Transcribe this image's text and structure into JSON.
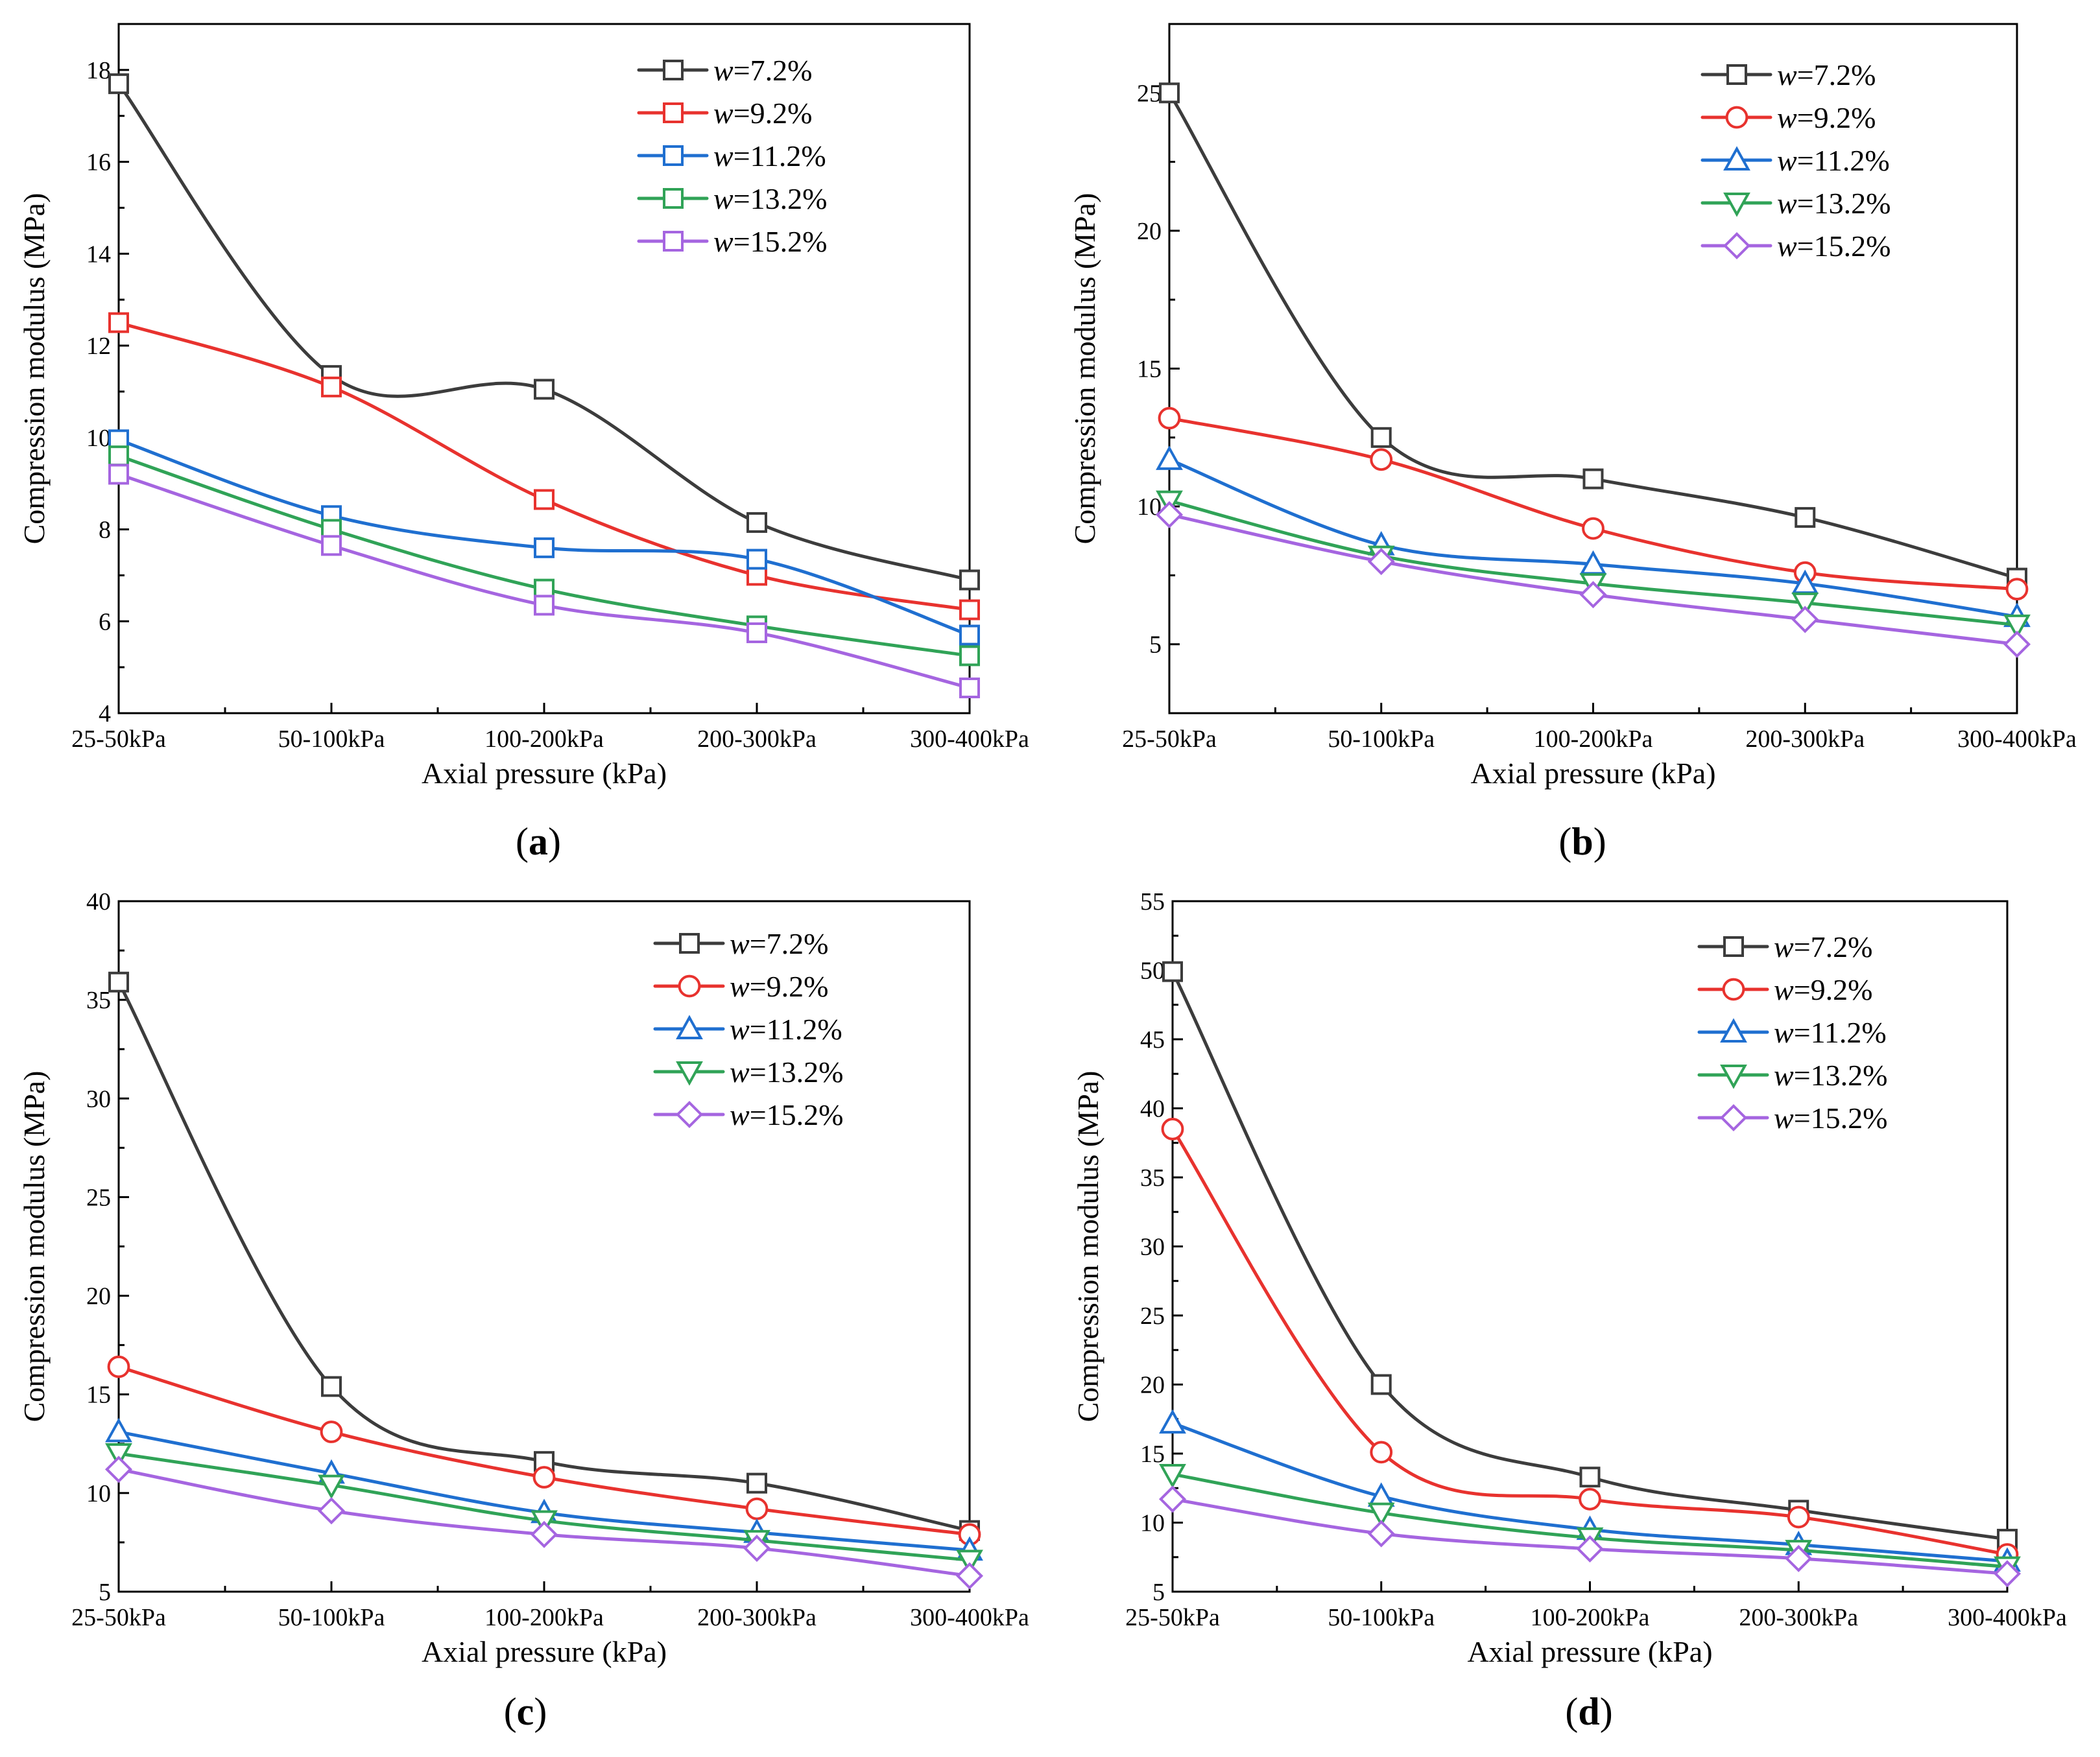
{
  "colors": {
    "w72": "#3c3c3c",
    "w92": "#e8322e",
    "w112": "#1f6fd0",
    "w132": "#30a357",
    "w152": "#a565e0"
  },
  "chart_data": [
    {
      "type": "line",
      "panel_label": "(a)",
      "xlabel": "Axial pressure (kPa)",
      "ylabel": "Compression modulus (MPa)",
      "categories": [
        "25-50kPa",
        "50-100kPa",
        "100-200kPa",
        "200-300kPa",
        "300-400kPa"
      ],
      "ylim": [
        4,
        19
      ],
      "yticks": [
        4,
        6,
        8,
        10,
        12,
        14,
        16,
        18
      ],
      "legend_position": "top-right",
      "series": [
        {
          "prefix": "w",
          "name": "=7.2%",
          "marker": "square",
          "color_key": "w72",
          "values": [
            17.7,
            11.35,
            11.05,
            8.15,
            6.9
          ]
        },
        {
          "prefix": "w",
          "name": "=9.2%",
          "marker": "square",
          "color_key": "w92",
          "values": [
            12.5,
            11.1,
            8.65,
            7.0,
            6.25
          ]
        },
        {
          "prefix": "w",
          "name": "=11.2%",
          "marker": "square",
          "color_key": "w112",
          "values": [
            9.95,
            8.3,
            7.6,
            7.35,
            5.7
          ]
        },
        {
          "prefix": "w",
          "name": "=13.2%",
          "marker": "square",
          "color_key": "w132",
          "values": [
            9.6,
            8.0,
            6.7,
            5.9,
            5.25
          ]
        },
        {
          "prefix": "w",
          "name": "=15.2%",
          "marker": "square",
          "color_key": "w152",
          "values": [
            9.2,
            7.65,
            6.35,
            5.75,
            4.55
          ]
        }
      ]
    },
    {
      "type": "line",
      "panel_label": "(b)",
      "xlabel": "Axial pressure (kPa)",
      "ylabel": "Compression modulus (MPa)",
      "categories": [
        "25-50kPa",
        "50-100kPa",
        "100-200kPa",
        "200-300kPa",
        "300-400kPa"
      ],
      "ylim": [
        2.5,
        27.5
      ],
      "yticks": [
        5,
        10,
        15,
        20,
        25
      ],
      "legend_position": "top-right",
      "series": [
        {
          "prefix": "w",
          "name": "=7.2%",
          "marker": "square",
          "color_key": "w72",
          "values": [
            25.0,
            12.5,
            11.0,
            9.6,
            7.4
          ]
        },
        {
          "prefix": "w",
          "name": "=9.2%",
          "marker": "circle",
          "color_key": "w92",
          "values": [
            13.2,
            11.7,
            9.2,
            7.6,
            7.0
          ]
        },
        {
          "prefix": "w",
          "name": "=11.2%",
          "marker": "triangle-up",
          "color_key": "w112",
          "values": [
            11.7,
            8.6,
            7.9,
            7.2,
            6.0
          ]
        },
        {
          "prefix": "w",
          "name": "=13.2%",
          "marker": "triangle-down",
          "color_key": "w132",
          "values": [
            10.2,
            8.2,
            7.2,
            6.5,
            5.7
          ]
        },
        {
          "prefix": "w",
          "name": "=15.2%",
          "marker": "diamond",
          "color_key": "w152",
          "values": [
            9.7,
            8.0,
            6.8,
            5.9,
            5.0
          ]
        }
      ]
    },
    {
      "type": "line",
      "panel_label": "(c)",
      "xlabel": "Axial pressure (kPa)",
      "ylabel": "Compression modulus (MPa)",
      "categories": [
        "25-50kPa",
        "50-100kPa",
        "100-200kPa",
        "200-300kPa",
        "300-400kPa"
      ],
      "ylim": [
        5,
        40
      ],
      "yticks": [
        5,
        10,
        15,
        20,
        25,
        30,
        35,
        40
      ],
      "legend_position": "top-right",
      "series": [
        {
          "prefix": "w",
          "name": "=7.2%",
          "marker": "square",
          "color_key": "w72",
          "values": [
            35.9,
            15.4,
            11.6,
            10.5,
            8.1
          ]
        },
        {
          "prefix": "w",
          "name": "=9.2%",
          "marker": "circle",
          "color_key": "w92",
          "values": [
            16.4,
            13.1,
            10.8,
            9.2,
            7.9
          ]
        },
        {
          "prefix": "w",
          "name": "=11.2%",
          "marker": "triangle-up",
          "color_key": "w112",
          "values": [
            13.1,
            11.0,
            9.0,
            8.0,
            7.1
          ]
        },
        {
          "prefix": "w",
          "name": "=13.2%",
          "marker": "triangle-down",
          "color_key": "w132",
          "values": [
            12.0,
            10.4,
            8.6,
            7.6,
            6.6
          ]
        },
        {
          "prefix": "w",
          "name": "=15.2%",
          "marker": "diamond",
          "color_key": "w152",
          "values": [
            11.2,
            9.1,
            7.9,
            7.2,
            5.8
          ]
        }
      ]
    },
    {
      "type": "line",
      "panel_label": "(d)",
      "xlabel": "Axial pressure (kPa)",
      "ylabel": "Compression modulus (MPa)",
      "categories": [
        "25-50kPa",
        "50-100kPa",
        "100-200kPa",
        "200-300kPa",
        "300-400kPa"
      ],
      "ylim": [
        5,
        55
      ],
      "yticks": [
        5,
        10,
        15,
        20,
        25,
        30,
        35,
        40,
        45,
        50,
        55
      ],
      "legend_position": "top-right",
      "series": [
        {
          "prefix": "w",
          "name": "=7.2%",
          "marker": "square",
          "color_key": "w72",
          "values": [
            49.9,
            20.0,
            13.3,
            10.9,
            8.8
          ]
        },
        {
          "prefix": "w",
          "name": "=9.2%",
          "marker": "circle",
          "color_key": "w92",
          "values": [
            38.5,
            15.1,
            11.7,
            10.4,
            7.7
          ]
        },
        {
          "prefix": "w",
          "name": "=11.2%",
          "marker": "triangle-up",
          "color_key": "w112",
          "values": [
            17.2,
            11.9,
            9.5,
            8.4,
            7.2
          ]
        },
        {
          "prefix": "w",
          "name": "=13.2%",
          "marker": "triangle-down",
          "color_key": "w132",
          "values": [
            13.5,
            10.7,
            8.9,
            8.0,
            6.8
          ]
        },
        {
          "prefix": "w",
          "name": "=15.2%",
          "marker": "diamond",
          "color_key": "w152",
          "values": [
            11.7,
            9.2,
            8.1,
            7.4,
            6.3
          ]
        }
      ]
    }
  ]
}
